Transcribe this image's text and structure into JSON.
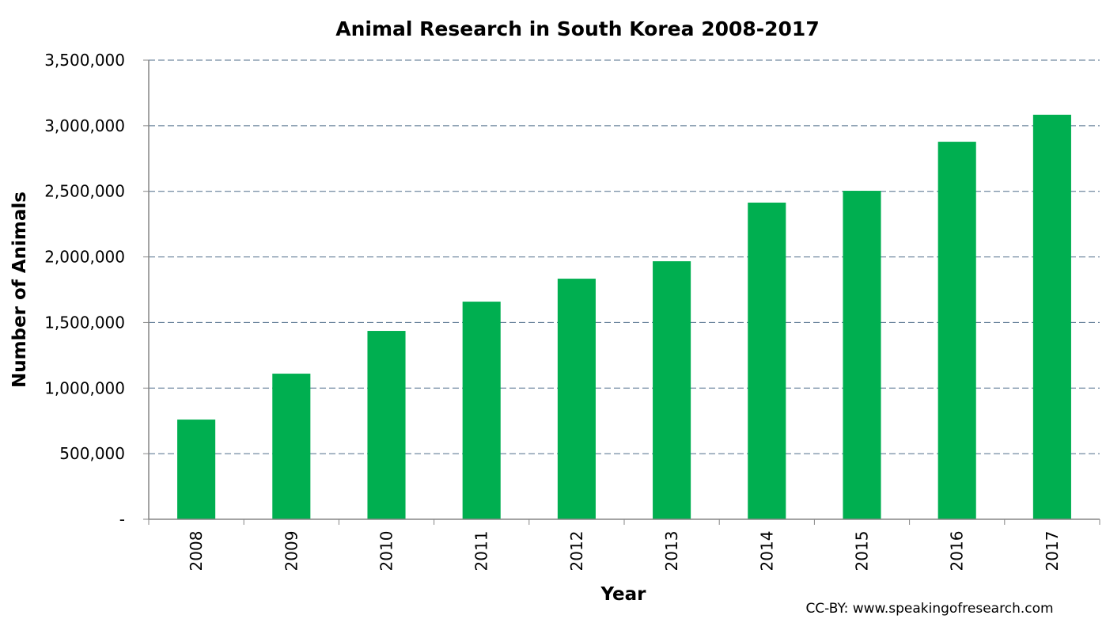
{
  "chart_data": {
    "type": "bar",
    "title": "Animal Research in South Korea 2008-2017",
    "xlabel": "Year",
    "ylabel": "Number of Animals",
    "categories": [
      "2008",
      "2009",
      "2010",
      "2011",
      "2012",
      "2013",
      "2014",
      "2015",
      "2016",
      "2017"
    ],
    "values": [
      760000,
      1110000,
      1436000,
      1659000,
      1834000,
      1967000,
      2414000,
      2504000,
      2878000,
      3084000
    ],
    "ylim": [
      0,
      3500000
    ],
    "yticks": [
      0,
      500000,
      1000000,
      1500000,
      2000000,
      2500000,
      3000000,
      3500000
    ],
    "ytick_labels": [
      "-",
      "500,000",
      "1,000,000",
      "1,500,000",
      "2,000,000",
      "2,500,000",
      "3,000,000",
      "3,500,000"
    ],
    "grid": true,
    "grid_style": "dashed",
    "bar_color": "#00AF50",
    "grid_color": "#4F6D8A",
    "legend": "none",
    "annotation": "CC-BY: www.speakingofresearch.com"
  }
}
